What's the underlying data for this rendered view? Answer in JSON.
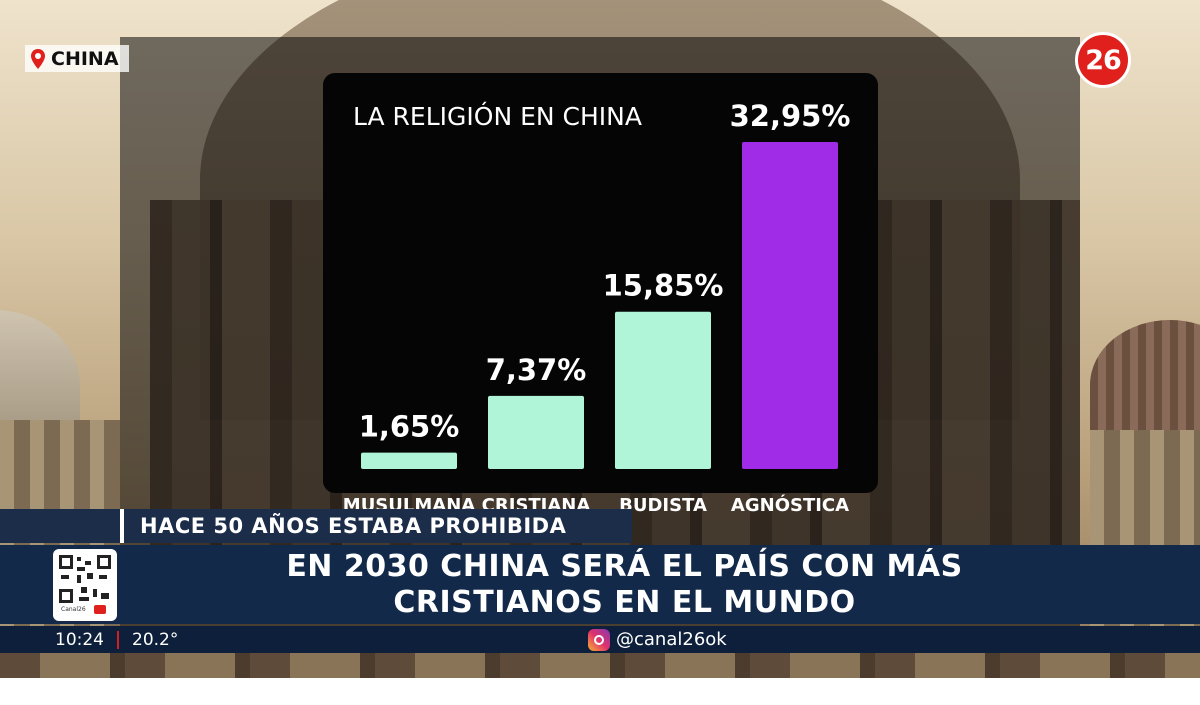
{
  "location_tag": {
    "label": "CHINA",
    "icon": "location-pin-icon"
  },
  "channel_logo": {
    "label": "26",
    "color": "#e0201c"
  },
  "chart_data": {
    "type": "bar",
    "title": "LA RELIGIÓN EN CHINA",
    "categories": [
      "MUSULMANA",
      "CRISTIANA",
      "BUDISTA",
      "AGNÓSTICA"
    ],
    "values": [
      1.65,
      7.37,
      15.85,
      32.95
    ],
    "value_labels": [
      "1,65%",
      "7,37%",
      "15,85%",
      "32,95%"
    ],
    "colors": [
      "#b0f5d8",
      "#b0f5d8",
      "#b0f5d8",
      "#a02ce8"
    ],
    "ylim": [
      0,
      32.95
    ],
    "grid": false
  },
  "subheadline": "HACE 50 AÑOS ESTABA PROHIBIDA",
  "headline": {
    "line1": "EN 2030 CHINA SERÁ EL PAÍS CON MÁS",
    "line2": "CRISTIANOS EN EL MUNDO"
  },
  "qr": {
    "caption": "Canal26"
  },
  "ticker": {
    "time": "10:24",
    "temperature": "20.2°",
    "social_handle": "@canal26ok",
    "social_icon": "instagram-icon"
  }
}
